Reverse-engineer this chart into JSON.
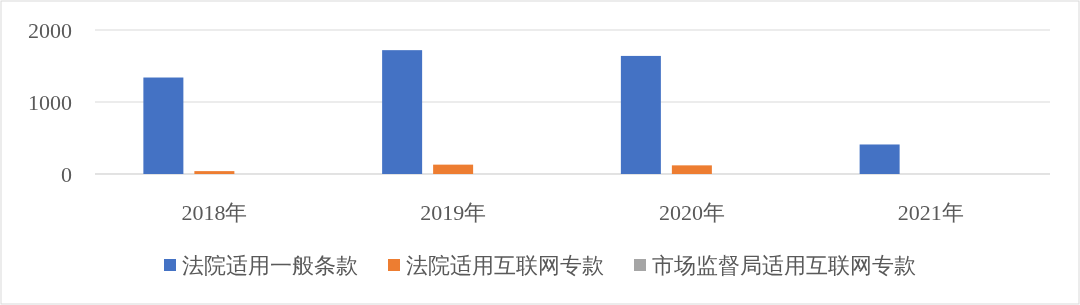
{
  "chart_data": {
    "type": "bar",
    "categories": [
      "2018年",
      "2019年",
      "2020年",
      "2021年"
    ],
    "series": [
      {
        "name": "法院适用一般条款",
        "color": "#4472c4",
        "values": [
          1340,
          1720,
          1640,
          410
        ]
      },
      {
        "name": "法院适用互联网专款",
        "color": "#ed7d31",
        "values": [
          40,
          130,
          120,
          0
        ]
      },
      {
        "name": "市场监督局适用互联网专款",
        "color": "#a5a5a5",
        "values": [
          0,
          0,
          0,
          0
        ]
      }
    ],
    "ylim": [
      0,
      2000
    ],
    "yticks": [
      0,
      1000,
      2000
    ],
    "grid": "y",
    "legend": "bottom"
  }
}
